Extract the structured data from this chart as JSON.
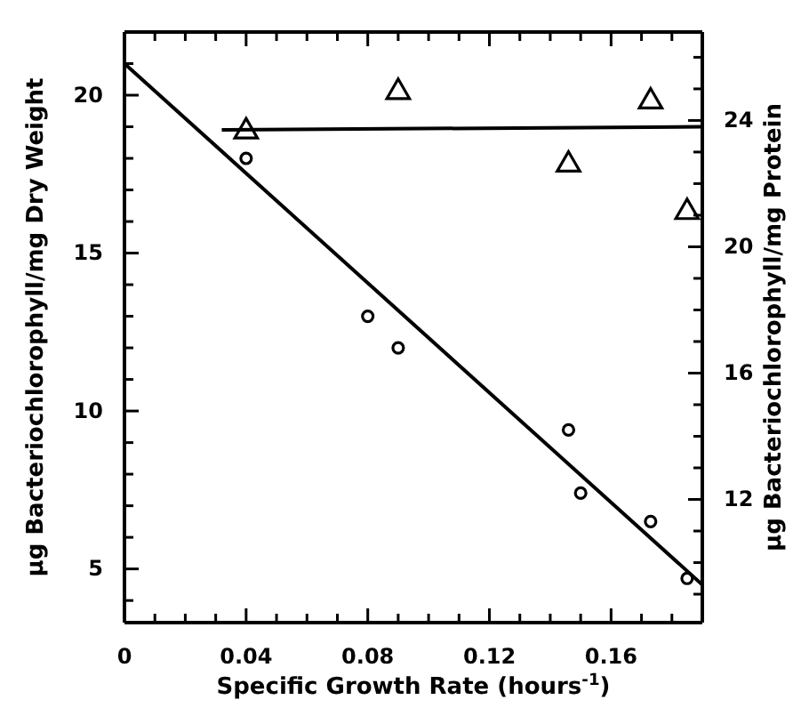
{
  "chart_data": {
    "type": "scatter",
    "xlabel": "Specific Growth Rate (hours$^{-1}$)",
    "ylabel": "µg Bacteriochlorophyll/mg Dry Weight",
    "y2label": "µg Bacteriochlorophyll/mg Protein",
    "xlim": [
      0,
      0.19
    ],
    "ylim": [
      3.3,
      22
    ],
    "y2lim": [
      8.1,
      26.8
    ],
    "xticks": [
      0,
      {
        "value": 0.01,
        "label": null
      },
      {
        "value": 0.02,
        "label": null
      },
      {
        "value": 0.03,
        "label": null
      },
      0.04,
      {
        "value": 0.05,
        "label": null
      },
      {
        "value": 0.06,
        "label": null
      },
      {
        "value": 0.07,
        "label": null
      },
      0.08,
      {
        "value": 0.09,
        "label": null
      },
      {
        "value": 0.1,
        "label": null
      },
      {
        "value": 0.11,
        "label": null
      },
      {
        "value": 0.12,
        "label": "0.12"
      },
      {
        "value": 0.13,
        "label": null
      },
      {
        "value": 0.14,
        "label": null
      },
      {
        "value": 0.15,
        "label": null
      },
      0.16,
      {
        "value": 0.17,
        "label": null
      },
      {
        "value": 0.18,
        "label": null
      }
    ],
    "yticks": [
      {
        "value": 4,
        "label": null
      },
      5,
      {
        "value": 6,
        "label": null
      },
      {
        "value": 7,
        "label": null
      },
      {
        "value": 8,
        "label": null
      },
      {
        "value": 9,
        "label": null
      },
      10,
      {
        "value": 11,
        "label": null
      },
      {
        "value": 12,
        "label": null
      },
      {
        "value": 13,
        "label": null
      },
      {
        "value": 14,
        "label": null
      },
      15,
      {
        "value": 16,
        "label": null
      },
      {
        "value": 17,
        "label": null
      },
      {
        "value": 18,
        "label": null
      },
      {
        "value": 19,
        "label": null
      },
      20,
      {
        "value": 21,
        "label": null
      }
    ],
    "y2ticks": [
      {
        "value": 9,
        "label": null
      },
      {
        "value": 10,
        "label": null
      },
      {
        "value": 11,
        "label": null
      },
      12,
      {
        "value": 13,
        "label": null
      },
      {
        "value": 14,
        "label": null
      },
      {
        "value": 15,
        "label": null
      },
      16,
      {
        "value": 17,
        "label": null
      },
      {
        "value": 18,
        "label": null
      },
      {
        "value": 19,
        "label": null
      },
      20,
      {
        "value": 21,
        "label": null
      },
      {
        "value": 22,
        "label": null
      },
      {
        "value": 23,
        "label": null
      },
      24,
      {
        "value": 25,
        "label": null
      },
      {
        "value": 26,
        "label": null
      }
    ],
    "grid": false,
    "series": [
      {
        "color": "#000000",
        "marker": "circle",
        "x": [
          0.04,
          0.08,
          0.09,
          0.146,
          0.15,
          0.173,
          0.185
        ],
        "values": [
          18,
          13,
          12,
          9.4,
          7.4,
          6.5,
          4.7
        ]
      },
      {
        "color": "#000000",
        "marker": "triangle",
        "axis": "y2",
        "x": [
          0.04,
          0.09,
          0.146,
          0.173,
          0.185
        ],
        "values": [
          23.65,
          24.9,
          22.6,
          24.6,
          21.1
        ]
      },
      {
        "type": "line",
        "color": "#000000",
        "marker": "none",
        "x": [
          0,
          0.19
        ],
        "values": [
          21,
          4.5
        ]
      },
      {
        "type": "line",
        "color": "#000000",
        "marker": "none",
        "axis": "y2",
        "x": [
          0.032,
          0.19
        ],
        "values": [
          23.7,
          23.8
        ]
      }
    ]
  }
}
